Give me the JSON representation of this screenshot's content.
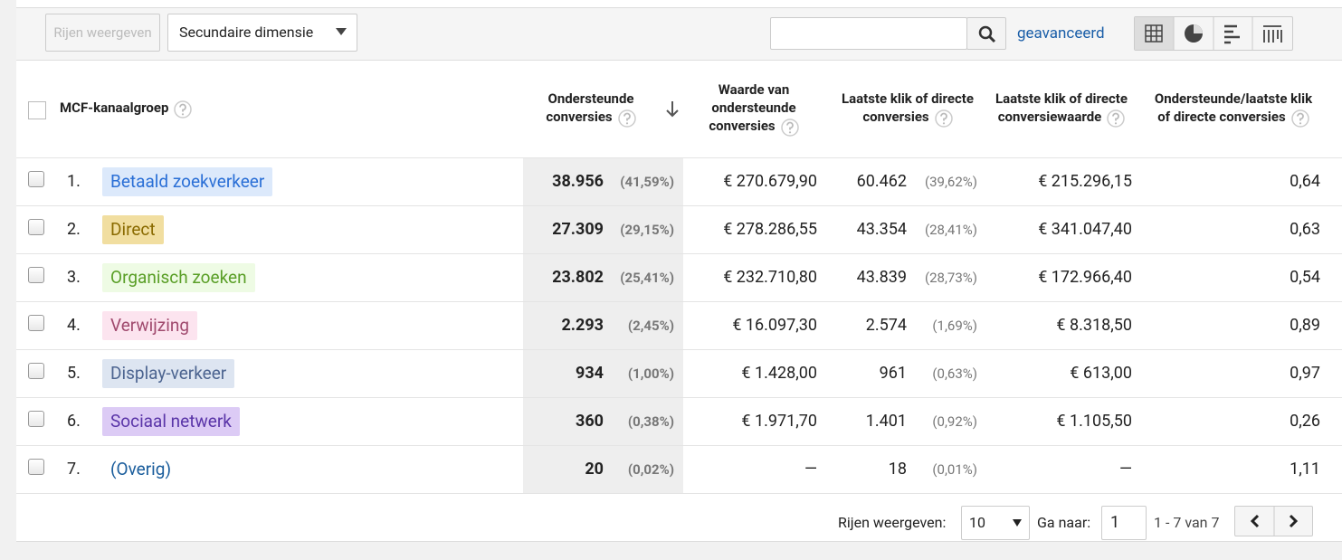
{
  "toolbar": {
    "show_rows_button": "Rijen weergeven",
    "secondary_dimension": "Secundaire dimensie",
    "advanced": "geavanceerd"
  },
  "table": {
    "columns": [
      "MCF-kanaalgroep",
      "Ondersteunde conversies",
      "Waarde van ondersteunde conversies",
      "Laatste klik of directe conversies",
      "Laatste klik of directe conversiewaarde",
      "Ondersteunde/laatste klik of directe conversies"
    ],
    "rows": [
      {
        "index": "1.",
        "channel": "Betaald zoekverkeer",
        "assisted": "38.956",
        "assisted_pct": "(41,59%)",
        "assisted_value": "€ 270.679,90",
        "last_click": "60.462",
        "last_click_pct": "(39,62%)",
        "last_click_value": "€ 215.296,15",
        "ratio": "0,64"
      },
      {
        "index": "2.",
        "channel": "Direct",
        "assisted": "27.309",
        "assisted_pct": "(29,15%)",
        "assisted_value": "€ 278.286,55",
        "last_click": "43.354",
        "last_click_pct": "(28,41%)",
        "last_click_value": "€ 341.047,40",
        "ratio": "0,63"
      },
      {
        "index": "3.",
        "channel": "Organisch zoeken",
        "assisted": "23.802",
        "assisted_pct": "(25,41%)",
        "assisted_value": "€ 232.710,80",
        "last_click": "43.839",
        "last_click_pct": "(28,73%)",
        "last_click_value": "€ 172.966,40",
        "ratio": "0,54"
      },
      {
        "index": "4.",
        "channel": "Verwijzing",
        "assisted": "2.293",
        "assisted_pct": "(2,45%)",
        "assisted_value": "€ 16.097,30",
        "last_click": "2.574",
        "last_click_pct": "(1,69%)",
        "last_click_value": "€ 8.318,50",
        "ratio": "0,89"
      },
      {
        "index": "5.",
        "channel": "Display-verkeer",
        "assisted": "934",
        "assisted_pct": "(1,00%)",
        "assisted_value": "€ 1.428,00",
        "last_click": "961",
        "last_click_pct": "(0,63%)",
        "last_click_value": "€ 613,00",
        "ratio": "0,97"
      },
      {
        "index": "6.",
        "channel": "Sociaal netwerk",
        "assisted": "360",
        "assisted_pct": "(0,38%)",
        "assisted_value": "€ 1.971,70",
        "last_click": "1.401",
        "last_click_pct": "(0,92%)",
        "last_click_value": "€ 1.105,50",
        "ratio": "0,26"
      },
      {
        "index": "7.",
        "channel": "(Overig)",
        "assisted": "20",
        "assisted_pct": "(0,02%)",
        "assisted_value": "—",
        "last_click": "18",
        "last_click_pct": "(0,01%)",
        "last_click_value": "—",
        "ratio": "1,11"
      }
    ]
  },
  "footer": {
    "rows_label": "Rijen weergeven:",
    "rows_value": "10",
    "goto_label": "Ga naar:",
    "goto_value": "1",
    "range": "1 - 7 van 7"
  }
}
